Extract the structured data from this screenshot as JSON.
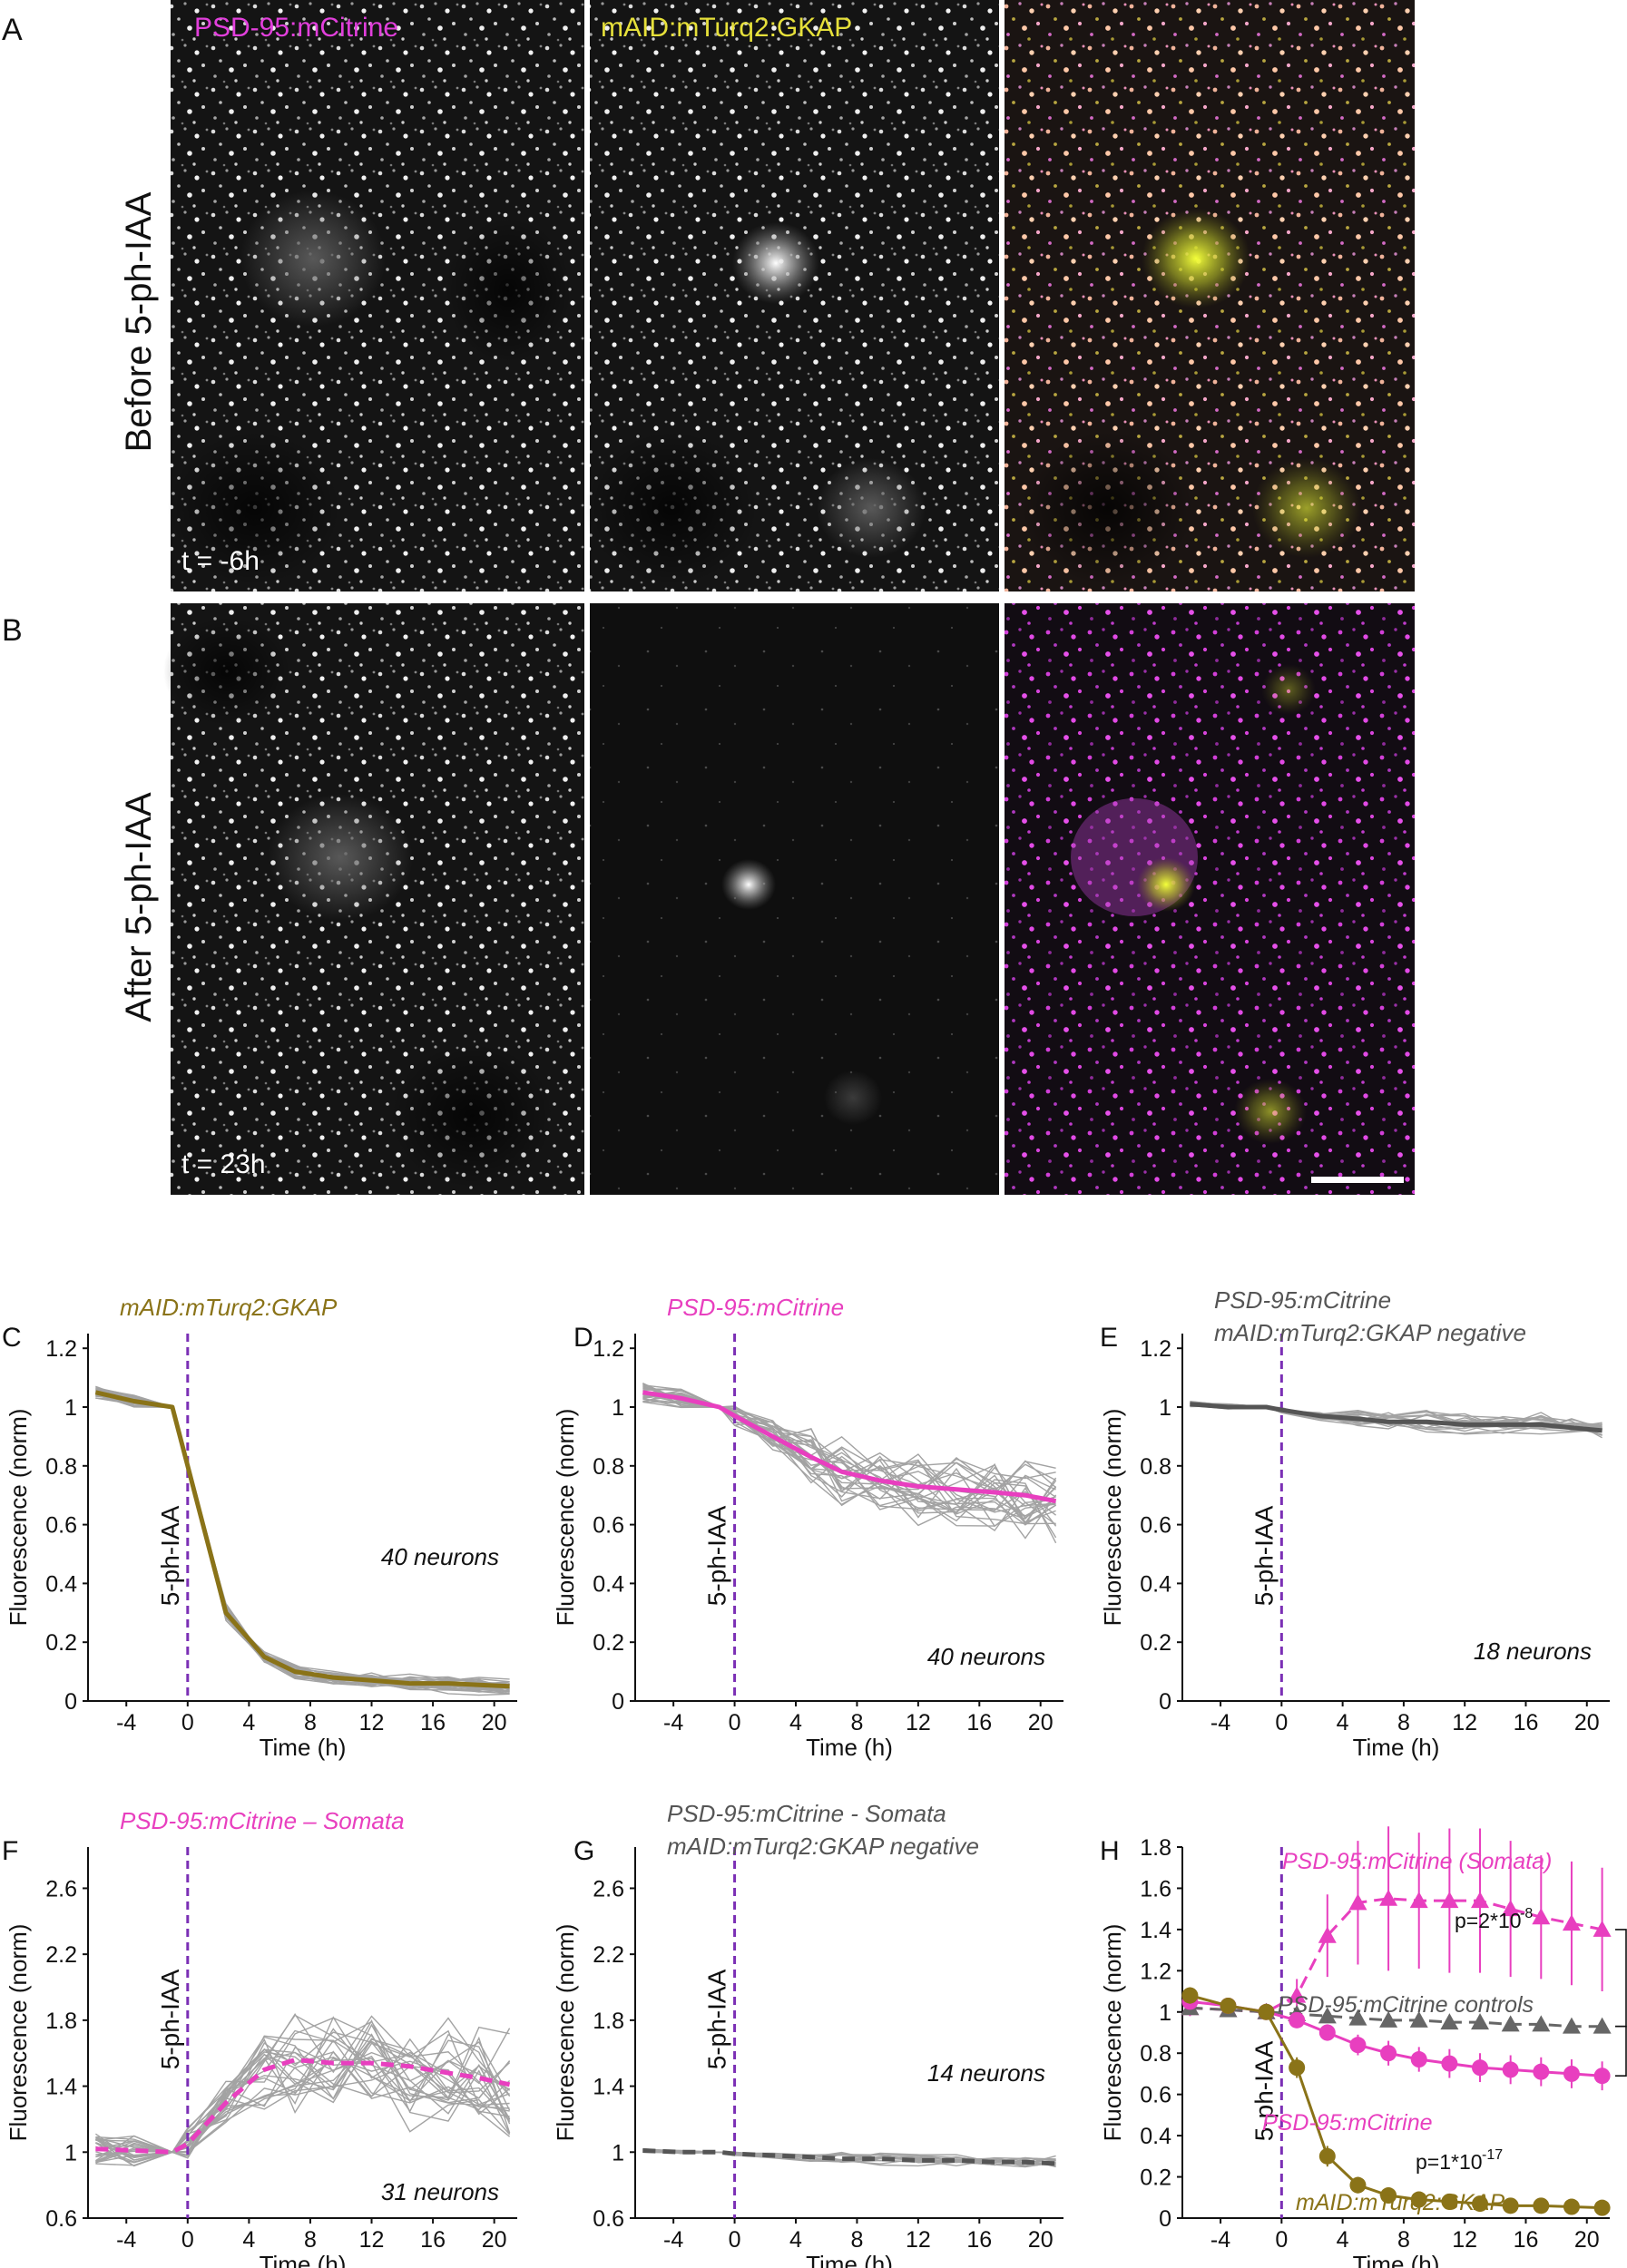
{
  "panels": {
    "A": {
      "letter": "A",
      "row_label": "Before 5-ph-IAA",
      "time_label": "t = -6h",
      "channel_labels": [
        "PSD-95:mCitrine",
        "mAID:mTurq2:GKAP",
        ""
      ]
    },
    "B": {
      "letter": "B",
      "row_label": "After 5-ph-IAA",
      "time_label": "t = 23h",
      "channel_labels": [
        "",
        "",
        ""
      ]
    }
  },
  "colors": {
    "magenta": "#e83fbf",
    "gkap_olive": "#8a7318",
    "grey_line": "#9a9a9a",
    "dark_grey": "#555555",
    "purple_dash": "#7b2fb5",
    "yellow_label": "#e6e03a",
    "magenta_label": "#e23fdc"
  },
  "chart_data": [
    {
      "id": "C",
      "letter": "C",
      "type": "line",
      "title": "mAID:mTurq2:GKAP",
      "title_color": "#8a7318",
      "xlabel": "Time (h)",
      "ylabel": "Fluorescence (norm)",
      "xlim": [
        -6.5,
        21.5
      ],
      "ylim": [
        0,
        1.25
      ],
      "xticks": [
        -4,
        0,
        4,
        8,
        12,
        16,
        20
      ],
      "yticks": [
        0,
        0.2,
        0.4,
        0.6,
        0.8,
        1,
        1.2
      ],
      "ytick_labels": [
        "0",
        "0.2",
        "0.4",
        "0.6",
        "0.8",
        "1",
        "1.2"
      ],
      "treatment_label": "5-ph-IAA",
      "treatment_x": 0,
      "annotation": "40 neurons",
      "thin_traces": 40,
      "series": [
        {
          "color": "#8a7318",
          "style": "solid",
          "x": [
            -6,
            -3.5,
            -1,
            0,
            2.5,
            5,
            7,
            9.5,
            12,
            14.5,
            17,
            19,
            21
          ],
          "y": [
            1.05,
            1.02,
            1.0,
            0.8,
            0.3,
            0.15,
            0.1,
            0.08,
            0.07,
            0.06,
            0.06,
            0.055,
            0.05
          ]
        }
      ]
    },
    {
      "id": "D",
      "letter": "D",
      "type": "line",
      "title": "PSD-95:mCitrine",
      "title_color": "#e83fbf",
      "xlabel": "Time (h)",
      "ylabel": "Fluorescence (norm)",
      "xlim": [
        -6.5,
        21.5
      ],
      "ylim": [
        0,
        1.25
      ],
      "xticks": [
        -4,
        0,
        4,
        8,
        12,
        16,
        20
      ],
      "yticks": [
        0,
        0.2,
        0.4,
        0.6,
        0.8,
        1,
        1.2
      ],
      "ytick_labels": [
        "0",
        "0.2",
        "0.4",
        "0.6",
        "0.8",
        "1",
        "1.2"
      ],
      "treatment_label": "5-ph-IAA",
      "treatment_x": 0,
      "annotation": "40 neurons",
      "thin_traces": 40,
      "series": [
        {
          "color": "#e83fbf",
          "style": "solid",
          "x": [
            -6,
            -3.5,
            -1,
            0,
            2.5,
            5,
            7,
            9.5,
            12,
            14.5,
            17,
            19,
            21
          ],
          "y": [
            1.05,
            1.03,
            1.0,
            0.97,
            0.9,
            0.83,
            0.78,
            0.75,
            0.73,
            0.72,
            0.71,
            0.7,
            0.68
          ]
        }
      ]
    },
    {
      "id": "E",
      "letter": "E",
      "type": "line",
      "title": "PSD-95:mCitrine",
      "title2": "mAID:mTurq2:GKAP  negative",
      "title_color": "#555555",
      "xlabel": "Time (h)",
      "ylabel": "Fluorescence (norm)",
      "xlim": [
        -6.5,
        21.5
      ],
      "ylim": [
        0,
        1.25
      ],
      "xticks": [
        -4,
        0,
        4,
        8,
        12,
        16,
        20
      ],
      "yticks": [
        0,
        0.2,
        0.4,
        0.6,
        0.8,
        1,
        1.2
      ],
      "ytick_labels": [
        "0",
        "0.2",
        "0.4",
        "0.6",
        "0.8",
        "1",
        "1.2"
      ],
      "treatment_label": "5-ph-IAA",
      "treatment_x": 0,
      "annotation": "18 neurons",
      "thin_traces": 18,
      "series": [
        {
          "color": "#555555",
          "style": "solid",
          "x": [
            -6,
            -3.5,
            -1,
            0,
            2.5,
            5,
            7,
            9.5,
            12,
            14.5,
            17,
            19,
            21
          ],
          "y": [
            1.01,
            1.0,
            1.0,
            0.99,
            0.97,
            0.96,
            0.95,
            0.95,
            0.94,
            0.94,
            0.94,
            0.93,
            0.92
          ]
        }
      ]
    },
    {
      "id": "F",
      "letter": "F",
      "type": "line",
      "title": "PSD-95:mCitrine – Somata",
      "title_color": "#e83fbf",
      "xlabel": "Time (h)",
      "ylabel": "Fluorescence (norm)",
      "xlim": [
        -6.5,
        21.5
      ],
      "ylim": [
        0.6,
        2.85
      ],
      "xticks": [
        -4,
        0,
        4,
        8,
        12,
        16,
        20
      ],
      "yticks": [
        0.6,
        1,
        1.4,
        1.8,
        2.2,
        2.6
      ],
      "ytick_labels": [
        "0.6",
        "1",
        "1.4",
        "1.8",
        "2.2",
        "2.6"
      ],
      "treatment_label": "5-ph-IAA",
      "treatment_x": 0,
      "annotation": "31 neurons",
      "thin_traces": 31,
      "series": [
        {
          "color": "#e83fbf",
          "style": "dashed",
          "x": [
            -6,
            -3.5,
            -1,
            0,
            2.5,
            5,
            7,
            9.5,
            12,
            14.5,
            17,
            19,
            21
          ],
          "y": [
            1.02,
            1.01,
            1.0,
            1.05,
            1.3,
            1.5,
            1.56,
            1.54,
            1.54,
            1.52,
            1.48,
            1.45,
            1.41
          ]
        }
      ]
    },
    {
      "id": "G",
      "letter": "G",
      "type": "line",
      "title": "PSD-95:mCitrine  - Somata",
      "title2": "mAID:mTurq2:GKAP  negative",
      "title_color": "#555555",
      "xlabel": "Time (h)",
      "ylabel": "Fluorescence (norm)",
      "xlim": [
        -6.5,
        21.5
      ],
      "ylim": [
        0.6,
        2.85
      ],
      "xticks": [
        -4,
        0,
        4,
        8,
        12,
        16,
        20
      ],
      "yticks": [
        0.6,
        1,
        1.4,
        1.8,
        2.2,
        2.6
      ],
      "ytick_labels": [
        "0.6",
        "1",
        "1.4",
        "1.8",
        "2.2",
        "2.6"
      ],
      "treatment_label": "5-ph-IAA",
      "treatment_x": 0,
      "annotation": "14 neurons",
      "thin_traces": 14,
      "series": [
        {
          "color": "#555555",
          "style": "dashed",
          "x": [
            -6,
            -3.5,
            -1,
            0,
            2.5,
            5,
            7,
            9.5,
            12,
            14.5,
            17,
            19,
            21
          ],
          "y": [
            1.01,
            1.0,
            1.0,
            0.99,
            0.98,
            0.97,
            0.96,
            0.96,
            0.95,
            0.95,
            0.94,
            0.94,
            0.93
          ]
        }
      ]
    },
    {
      "id": "H",
      "letter": "H",
      "type": "line",
      "title": "",
      "title_color": "#555555",
      "xlabel": "Time (h)",
      "ylabel": "Fluorescence (norm)",
      "xlim": [
        -6.5,
        21.5
      ],
      "ylim": [
        0,
        1.8
      ],
      "xticks": [
        -4,
        0,
        4,
        8,
        12,
        16,
        20
      ],
      "yticks": [
        0,
        0.2,
        0.4,
        0.6,
        0.8,
        1,
        1.2,
        1.4,
        1.6,
        1.8
      ],
      "ytick_labels": [
        "0",
        "0.2",
        "0.4",
        "0.6",
        "0.8",
        "1",
        "1.2",
        "1.4",
        "1.6",
        "1.8"
      ],
      "treatment_label": "5-ph-IAA",
      "treatment_x": 0,
      "annotation": "",
      "thin_traces": 0,
      "series": [
        {
          "name": "PSD-95:mCitrine  (Somata)",
          "color": "#e83fbf",
          "style": "dashed",
          "marker": "triangle",
          "x": [
            -6,
            -3.5,
            -1,
            1,
            3,
            5,
            7,
            9,
            11,
            13,
            15,
            17,
            19,
            21
          ],
          "y": [
            1.02,
            1.01,
            1.0,
            1.08,
            1.37,
            1.53,
            1.55,
            1.54,
            1.54,
            1.54,
            1.5,
            1.46,
            1.43,
            1.4
          ],
          "err": [
            0.04,
            0.03,
            0.0,
            0.08,
            0.2,
            0.3,
            0.35,
            0.33,
            0.35,
            0.35,
            0.33,
            0.3,
            0.3,
            0.3
          ]
        },
        {
          "name": "PSD-95:mCitrine  controls",
          "color": "#666666",
          "style": "dashed",
          "marker": "triangle",
          "x": [
            -6,
            -3.5,
            -1,
            1,
            3,
            5,
            7,
            9,
            11,
            13,
            15,
            17,
            19,
            21
          ],
          "y": [
            1.02,
            1.01,
            1.0,
            0.99,
            0.98,
            0.97,
            0.96,
            0.96,
            0.95,
            0.95,
            0.94,
            0.94,
            0.93,
            0.93
          ],
          "err": [
            0.02,
            0.02,
            0.0,
            0.02,
            0.02,
            0.02,
            0.02,
            0.02,
            0.02,
            0.02,
            0.03,
            0.03,
            0.03,
            0.03
          ]
        },
        {
          "name": "PSD-95:mCitrine",
          "color": "#e83fbf",
          "style": "solid",
          "marker": "circle",
          "x": [
            -6,
            -3.5,
            -1,
            1,
            3,
            5,
            7,
            9,
            11,
            13,
            15,
            17,
            19,
            21
          ],
          "y": [
            1.05,
            1.03,
            1.0,
            0.96,
            0.9,
            0.84,
            0.8,
            0.77,
            0.75,
            0.73,
            0.72,
            0.71,
            0.7,
            0.69
          ],
          "err": [
            0.03,
            0.02,
            0.0,
            0.02,
            0.04,
            0.05,
            0.06,
            0.06,
            0.07,
            0.07,
            0.07,
            0.07,
            0.07,
            0.07
          ]
        },
        {
          "name": "mAID:mTurq2:GKAP",
          "color": "#8a7318",
          "style": "solid",
          "marker": "circle",
          "x": [
            -6,
            -3.5,
            -1,
            1,
            3,
            5,
            7,
            9,
            11,
            13,
            15,
            17,
            19,
            21
          ],
          "y": [
            1.08,
            1.03,
            1.0,
            0.73,
            0.3,
            0.16,
            0.11,
            0.09,
            0.08,
            0.07,
            0.06,
            0.06,
            0.055,
            0.05
          ],
          "err": [
            0.04,
            0.02,
            0.0,
            0.05,
            0.05,
            0.04,
            0.03,
            0.03,
            0.02,
            0.02,
            0.02,
            0.02,
            0.02,
            0.02
          ]
        }
      ],
      "pvalues": [
        "p=2*10",
        "-8",
        "p=1*10",
        "-17"
      ]
    }
  ]
}
